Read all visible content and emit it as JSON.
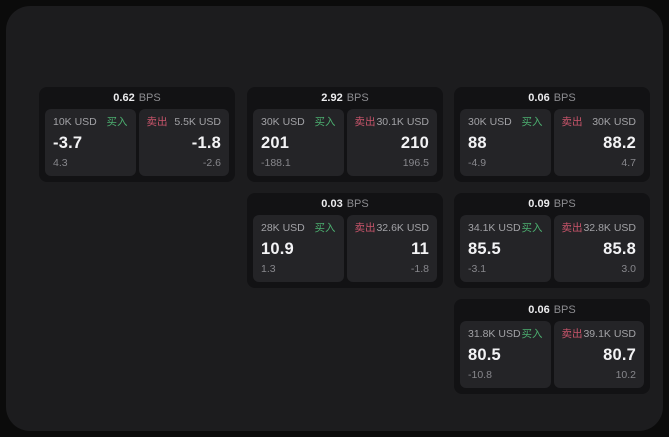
{
  "labels": {
    "bps_unit": "BPS",
    "buy": "买入",
    "sell": "卖出"
  },
  "colors": {
    "background": "#0b0b0b",
    "panel": "#1c1c1e",
    "card": "#121214",
    "tile": "#242427",
    "buy_green": "#4caf70",
    "sell_red": "#c9556b"
  },
  "cards": [
    {
      "bps": "0.62",
      "buy": {
        "amount": "10K USD",
        "price": "-3.7",
        "delta": "4.3"
      },
      "sell": {
        "amount": "5.5K USD",
        "price": "-1.8",
        "delta": "-2.6"
      }
    },
    {
      "bps": "2.92",
      "buy": {
        "amount": "30K USD",
        "price": "201",
        "delta": "-188.1"
      },
      "sell": {
        "amount": "30.1K USD",
        "price": "210",
        "delta": "196.5"
      }
    },
    {
      "bps": "0.06",
      "buy": {
        "amount": "30K USD",
        "price": "88",
        "delta": "-4.9"
      },
      "sell": {
        "amount": "30K USD",
        "price": "88.2",
        "delta": "4.7"
      }
    },
    {
      "bps": "0.03",
      "buy": {
        "amount": "28K USD",
        "price": "10.9",
        "delta": "1.3"
      },
      "sell": {
        "amount": "32.6K USD",
        "price": "11",
        "delta": "-1.8"
      }
    },
    {
      "bps": "0.09",
      "buy": {
        "amount": "34.1K USD",
        "price": "85.5",
        "delta": "-3.1"
      },
      "sell": {
        "amount": "32.8K USD",
        "price": "85.8",
        "delta": "3.0"
      }
    },
    {
      "bps": "0.06",
      "buy": {
        "amount": "31.8K USD",
        "price": "80.5",
        "delta": "-10.8"
      },
      "sell": {
        "amount": "39.1K USD",
        "price": "80.7",
        "delta": "10.2"
      }
    }
  ]
}
